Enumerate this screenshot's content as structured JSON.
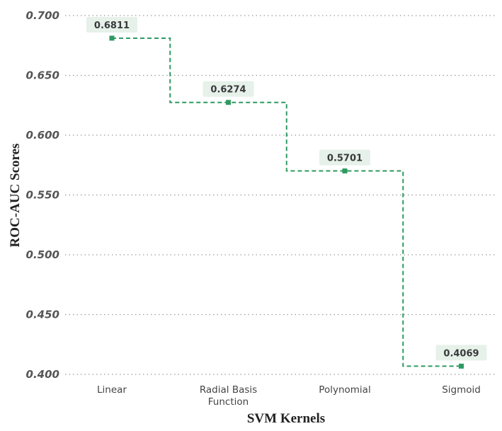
{
  "chart_data": {
    "type": "line",
    "step": "mid",
    "title": "",
    "xlabel": "SVM Kernels",
    "ylabel": "ROC-AUC Scores",
    "categories": [
      "Linear",
      "Radial Basis\nFunction",
      "Polynomial",
      "Sigmoid"
    ],
    "values": [
      0.6811,
      0.6274,
      0.5701,
      0.4069
    ],
    "data_labels": [
      "0.6811",
      "0.6274",
      "0.5701",
      "0.4069"
    ],
    "ylim": [
      0.4,
      0.7
    ],
    "yticks": [
      0.7,
      0.65,
      0.6,
      0.55,
      0.5,
      0.45,
      0.4
    ],
    "ytick_labels": [
      "0.700",
      "0.650",
      "0.600",
      "0.550",
      "0.500",
      "0.450",
      "0.400"
    ],
    "grid": "horizontal dotted",
    "line_style": "dashed",
    "line_color": "#2e9a62",
    "label_bg_color": "#e6f1ea"
  }
}
